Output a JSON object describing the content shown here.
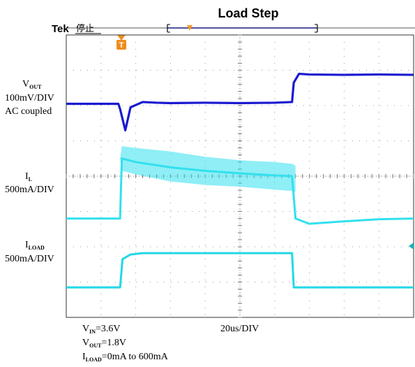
{
  "chart_data": {
    "type": "line",
    "title": "Load Step",
    "scope": {
      "brand": "Tek",
      "status": "停止",
      "trigger_marker": "T"
    },
    "grid": {
      "x_divisions": 10,
      "y_divisions": 8,
      "on": true
    },
    "x_scale": "20us/DIV",
    "channels": [
      {
        "id": "vout",
        "label_main": "V",
        "label_sub": "OUT",
        "scale": "100mV/DIV",
        "coupling": "AC coupled",
        "color": "#1a1ad0"
      },
      {
        "id": "il",
        "label_main": "I",
        "label_sub": "L",
        "scale": "500mA/DIV",
        "color": "#33e0ee"
      },
      {
        "id": "iload",
        "label_main": "I",
        "label_sub": "LOAD",
        "scale": "500mA/DIV",
        "color": "#22d8e8"
      }
    ],
    "conditions": [
      {
        "main": "V",
        "sub": "IN",
        "rest": "=3.6V"
      },
      {
        "main": "V",
        "sub": "OUT",
        "rest": "=1.8V"
      },
      {
        "main": "I",
        "sub": "LOAD",
        "rest": "=0mA to 600mA"
      }
    ],
    "series": [
      {
        "name": "VOUT",
        "x_div": [
          0,
          1.5,
          1.55,
          1.7,
          1.85,
          2.2,
          2.6,
          3.0,
          4.0,
          5.0,
          6.0,
          6.5,
          6.55,
          6.7,
          7.0,
          8.0,
          9.0,
          10.0
        ],
        "y_div": [
          6.05,
          6.05,
          5.9,
          5.3,
          5.95,
          6.1,
          6.08,
          6.07,
          6.08,
          6.07,
          6.08,
          6.1,
          6.65,
          6.9,
          6.88,
          6.87,
          6.88,
          6.87
        ]
      },
      {
        "name": "IL",
        "x_div": [
          0,
          1.55,
          1.6,
          2.0,
          3.0,
          4.0,
          5.0,
          6.0,
          6.5,
          6.6,
          7.0,
          8.0,
          9.0,
          10.0
        ],
        "y_div": [
          2.8,
          2.8,
          4.5,
          4.4,
          4.25,
          4.15,
          4.08,
          4.02,
          4.0,
          2.8,
          2.65,
          2.72,
          2.78,
          2.8
        ],
        "band_top_div": [
          4.5,
          4.85,
          4.8,
          4.7,
          4.55,
          4.45,
          4.4,
          4.35,
          4.3
        ],
        "band_bottom_div": [
          4.5,
          4.15,
          4.05,
          3.85,
          3.75,
          3.7,
          3.62,
          3.58,
          3.55
        ]
      },
      {
        "name": "ILOAD",
        "x_div": [
          0,
          1.55,
          1.62,
          1.85,
          2.2,
          3.0,
          5.0,
          6.5,
          6.55,
          10.0
        ],
        "y_div": [
          0.85,
          0.85,
          1.65,
          1.78,
          1.82,
          1.82,
          1.82,
          1.82,
          0.85,
          0.85
        ]
      }
    ]
  }
}
